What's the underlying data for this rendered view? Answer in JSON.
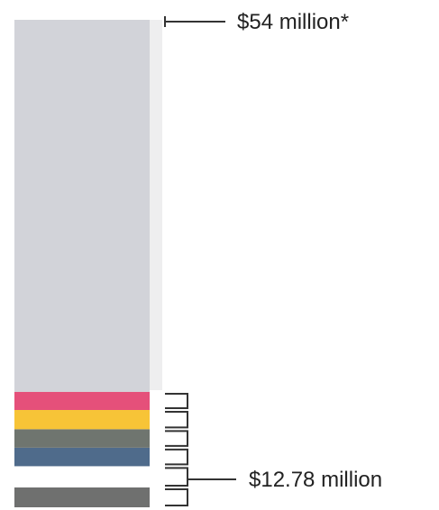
{
  "chart_data": {
    "type": "bar",
    "title": "",
    "xlabel": "",
    "ylabel": "",
    "unit": "million USD",
    "total_value": 54,
    "total_label": "$54 million*",
    "sub_total_value": 12.78,
    "sub_total_label": "$12.78 million",
    "segments": [
      {
        "value": 2.0,
        "color": "#e5507a"
      },
      {
        "value": 2.13,
        "color": "#f7c437"
      },
      {
        "value": 2.05,
        "color": "#6f756f"
      },
      {
        "value": 2.05,
        "color": "#4f6b8b"
      },
      {
        "value": 2.35,
        "color": "#ffffff"
      },
      {
        "value": 2.2,
        "color": "#6f706f"
      }
    ],
    "remainder_color": "#d2d3d9"
  }
}
